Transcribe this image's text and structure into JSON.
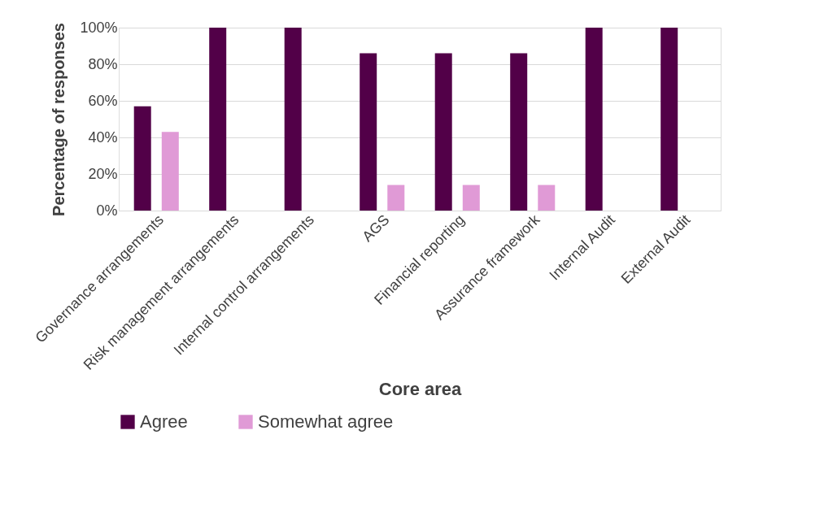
{
  "chart_data": {
    "type": "bar",
    "xlabel": "Core area",
    "ylabel": "Percentage of responses",
    "categories": [
      "Governance arrangements",
      "Risk management arrangements",
      "Internal control arrangements",
      "AGS",
      "Financial reporting",
      "Assurance framework",
      "Internal Audit",
      "External Audit"
    ],
    "series": [
      {
        "name": "Agree",
        "color": "#520048",
        "values": [
          57,
          100,
          100,
          86,
          86,
          86,
          100,
          100
        ]
      },
      {
        "name": "Somewhat agree",
        "color": "#e09ad6",
        "values": [
          43,
          0,
          0,
          14,
          14,
          14,
          0,
          0
        ]
      }
    ],
    "ylim": [
      0,
      100
    ],
    "yticks": [
      {
        "value": 0,
        "label": "0%"
      },
      {
        "value": 20,
        "label": "20%"
      },
      {
        "value": 40,
        "label": "40%"
      },
      {
        "value": 60,
        "label": "60%"
      },
      {
        "value": 80,
        "label": "80%"
      },
      {
        "value": 100,
        "label": "100%"
      }
    ],
    "grid": "y",
    "legend": "bottom"
  }
}
